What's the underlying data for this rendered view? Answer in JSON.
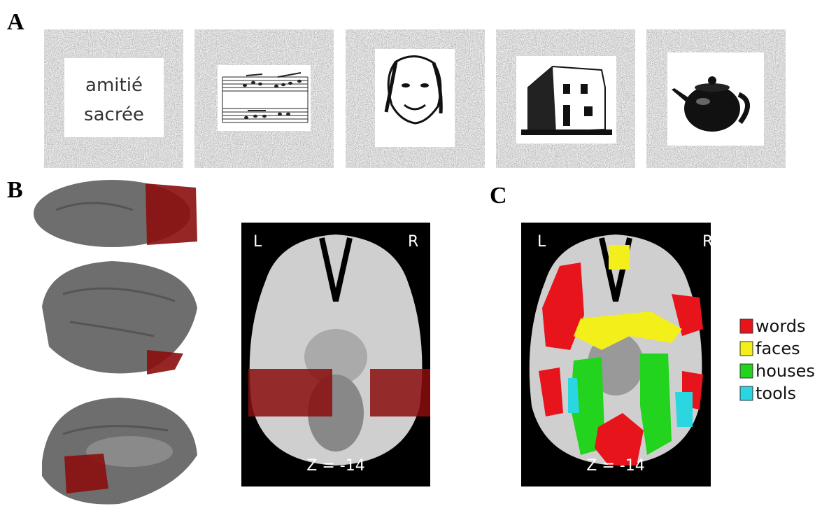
{
  "panel_a": {
    "label": "A",
    "word_stimulus": [
      "amitié",
      "sacrée"
    ]
  },
  "panel_b": {
    "label": "B",
    "left": "L",
    "right": "R",
    "slice": "Z = -14"
  },
  "panel_c": {
    "label": "C",
    "left": "L",
    "right": "R",
    "slice": "Z = -14",
    "legend": [
      {
        "label": "words",
        "color": "#e8141b"
      },
      {
        "label": "faces",
        "color": "#f2ef1a"
      },
      {
        "label": "houses",
        "color": "#22d41e"
      },
      {
        "label": "tools",
        "color": "#2ad6e0"
      }
    ]
  }
}
